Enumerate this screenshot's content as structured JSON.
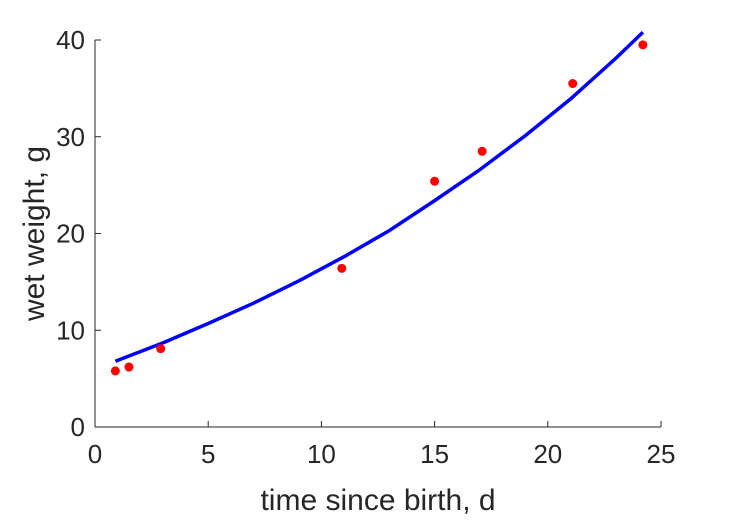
{
  "chart_data": {
    "type": "scatter",
    "xlabel": "time since birth, d",
    "ylabel": "wet weight, g",
    "xlim": [
      0,
      25
    ],
    "ylim": [
      0,
      40
    ],
    "xticks": [
      0,
      5,
      10,
      15,
      20,
      25
    ],
    "yticks": [
      0,
      10,
      20,
      30,
      40
    ],
    "grid": false,
    "legend": "none",
    "series": [
      {
        "type": "scatter",
        "color": "#ff0000",
        "x": [
          0.9,
          1.5,
          2.9,
          10.9,
          15.0,
          17.1,
          21.1,
          24.2
        ],
        "y": [
          5.8,
          6.2,
          8.1,
          16.4,
          25.4,
          28.5,
          35.5,
          39.5
        ]
      },
      {
        "type": "line",
        "color": "#0000ff",
        "x": [
          0.9,
          3,
          5,
          7,
          9,
          11,
          13,
          15,
          17,
          19,
          21,
          23,
          24.2
        ],
        "y": [
          6.8,
          8.7,
          10.7,
          12.8,
          15.1,
          17.6,
          20.3,
          23.4,
          26.6,
          30.1,
          33.9,
          38.1,
          40.8
        ]
      }
    ]
  }
}
